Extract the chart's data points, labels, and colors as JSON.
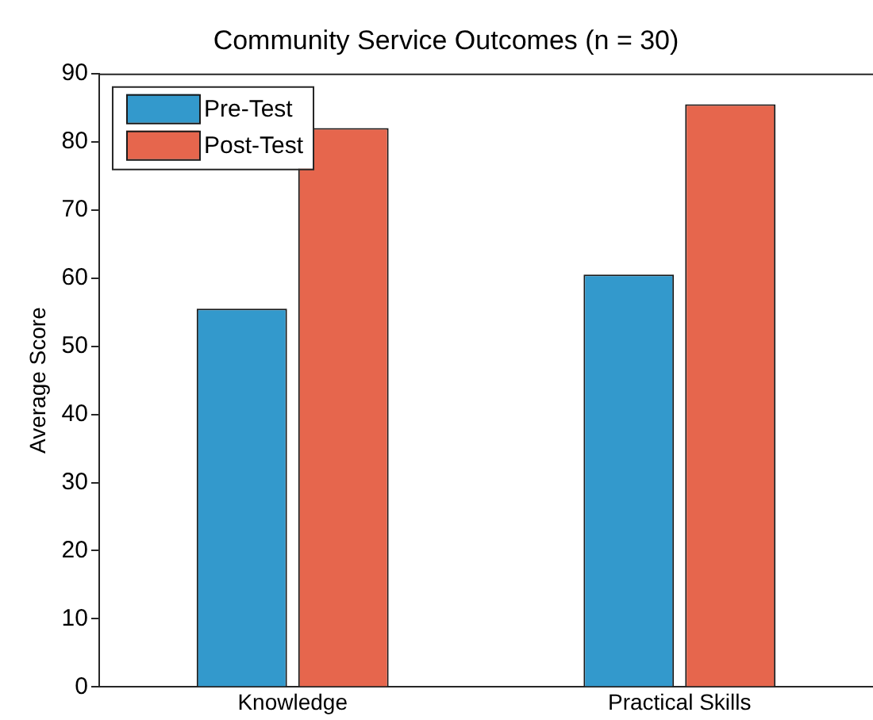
{
  "chart_data": {
    "type": "bar",
    "title": "Community Service Outcomes (n = 30)",
    "ylabel": "Average Score",
    "categories": [
      "Knowledge",
      "Practical Skills"
    ],
    "series": [
      {
        "name": "Pre-Test",
        "color": "#3399cc",
        "values": [
          55.5,
          60.5
        ]
      },
      {
        "name": "Post-Test",
        "color": "#e6664d",
        "values": [
          82.0,
          85.5
        ]
      }
    ],
    "ylim": [
      0,
      90
    ],
    "yticks": [
      0,
      10,
      20,
      30,
      40,
      50,
      60,
      70,
      80,
      90
    ],
    "grid": false,
    "legend": "top left"
  }
}
